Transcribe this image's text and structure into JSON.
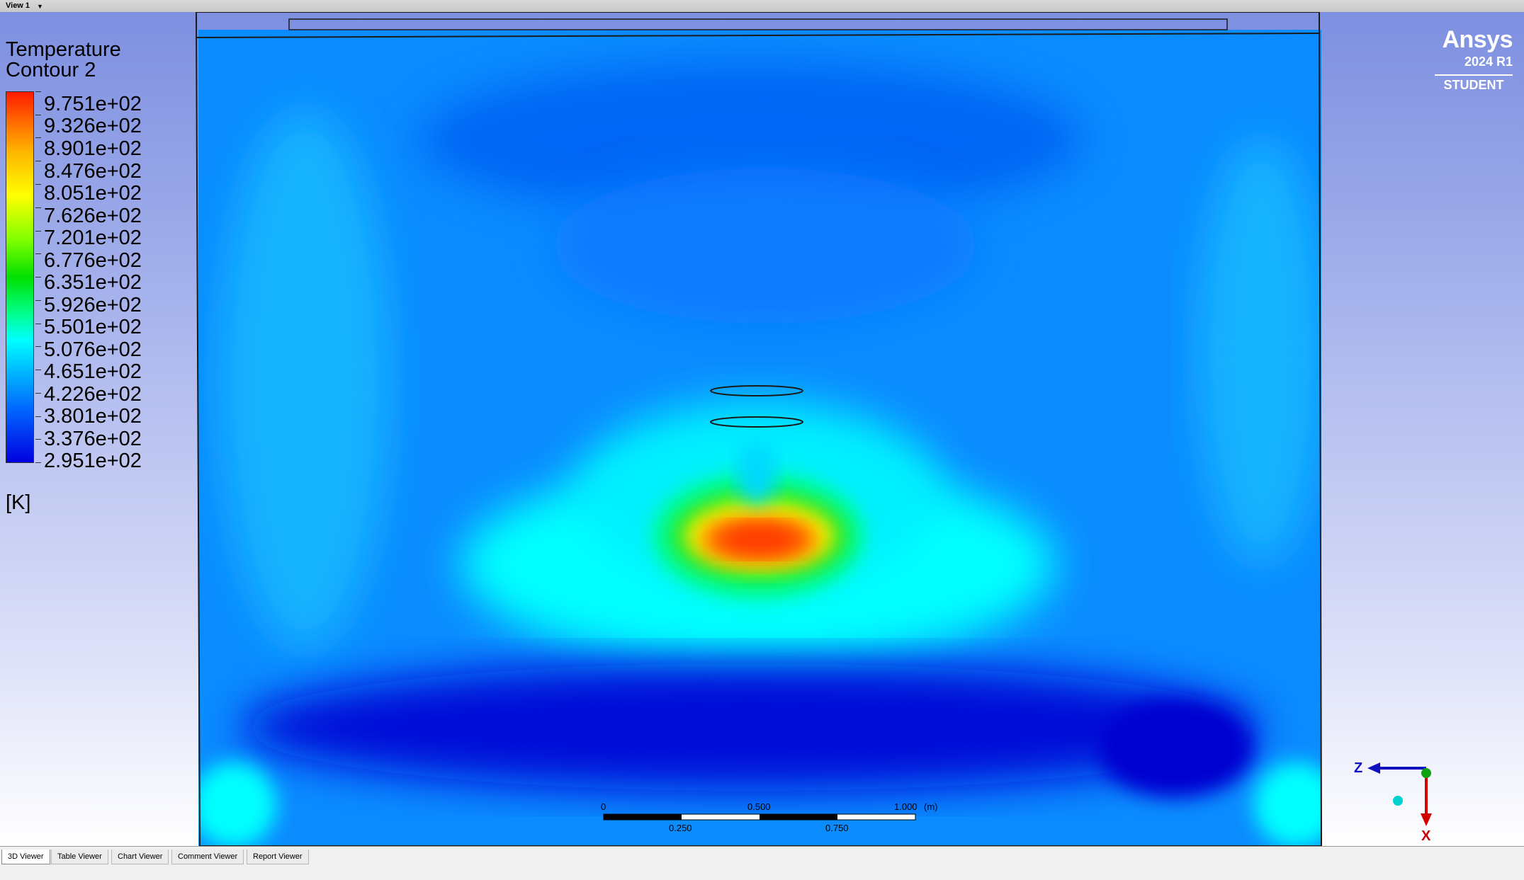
{
  "view": {
    "title": "View 1"
  },
  "legend": {
    "title": "Temperature",
    "subtitle": "Contour 2",
    "unit": "[K]",
    "levels": [
      "9.751e+02",
      "9.326e+02",
      "8.901e+02",
      "8.476e+02",
      "8.051e+02",
      "7.626e+02",
      "7.201e+02",
      "6.776e+02",
      "6.351e+02",
      "5.926e+02",
      "5.501e+02",
      "5.076e+02",
      "4.651e+02",
      "4.226e+02",
      "3.801e+02",
      "3.376e+02",
      "2.951e+02"
    ]
  },
  "brand": {
    "name": "Ansys",
    "version": "2024 R1",
    "edition": "STUDENT"
  },
  "scale": {
    "start": "0",
    "mid": "0.500",
    "end": "1.000",
    "unit": "(m)",
    "q1": "0.250",
    "q3": "0.750"
  },
  "axes": {
    "horizontal": "Z",
    "vertical": "X"
  },
  "tabs": [
    {
      "label": "3D Viewer",
      "active": true
    },
    {
      "label": "Table Viewer",
      "active": false
    },
    {
      "label": "Chart Viewer",
      "active": false
    },
    {
      "label": "Comment Viewer",
      "active": false
    },
    {
      "label": "Report Viewer",
      "active": false
    }
  ],
  "colors": {
    "hot": "#ff3000",
    "warm": "#ffff00",
    "mid": "#00ff80",
    "cool": "#00ffff",
    "cold": "#0040ff",
    "coldest": "#0000d8",
    "axis_z": "#1010c0",
    "axis_x": "#d00000",
    "axis_y": "#10a010"
  }
}
